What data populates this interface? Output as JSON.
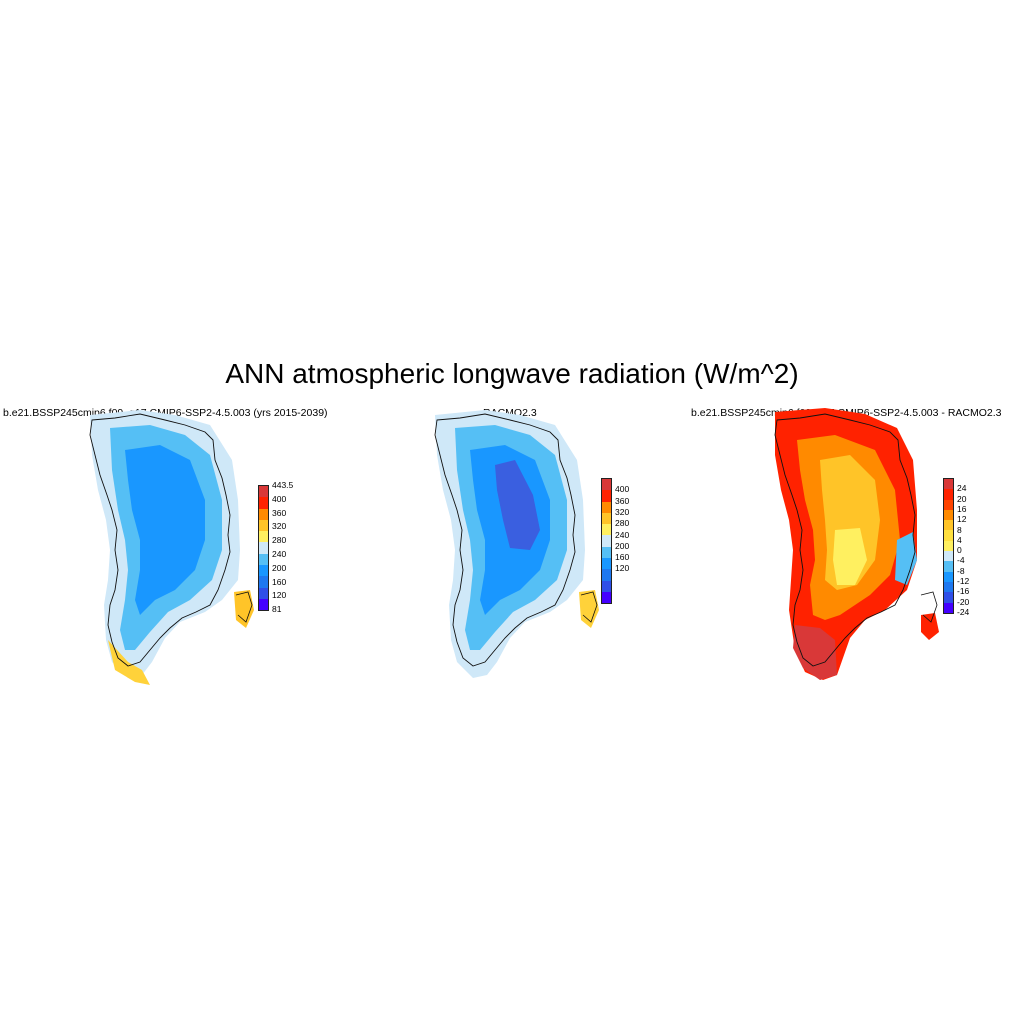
{
  "title": "ANN atmospheric longwave radiation (W/m^2)",
  "panels": [
    {
      "title": "b.e21.BSSP245cmip6.f09_g17.CMIP6-SSP2-4.5.003 (yrs 2015-2039)",
      "kind": "model",
      "colorbar": {
        "colors": [
          "#4400ff",
          "#2f4fe8",
          "#1e78f0",
          "#1997ff",
          "#55bff5",
          "#cfe8f8",
          "#fff060",
          "#ffc428",
          "#ff8a00",
          "#ff2200",
          "#d93838"
        ],
        "labels": [
          "443.5",
          "400",
          "360",
          "320",
          "280",
          "240",
          "200",
          "160",
          "120",
          "81"
        ]
      }
    },
    {
      "title": "RACMO2.3",
      "kind": "obs",
      "colorbar": {
        "colors": [
          "#4400ff",
          "#2f4fe8",
          "#1e78f0",
          "#1997ff",
          "#55bff5",
          "#cfe8f8",
          "#fff060",
          "#ffc428",
          "#ff8a00",
          "#ff2200",
          "#d93838"
        ],
        "labels": [
          "400",
          "360",
          "320",
          "280",
          "240",
          "200",
          "160",
          "120"
        ]
      }
    },
    {
      "title": "b.e21.BSSP245cmip6.f09_g17.CMIP6-SSP2-4.5.003 - RACMO2.3",
      "kind": "diff",
      "colorbar": {
        "colors": [
          "#4400ff",
          "#2f4fe8",
          "#1e78f0",
          "#1997ff",
          "#55bff5",
          "#cfe8f8",
          "#fff060",
          "#ffe040",
          "#ffc428",
          "#ff8a00",
          "#ff4400",
          "#ff2200",
          "#d93838"
        ],
        "labels": [
          "24",
          "20",
          "16",
          "12",
          "8",
          "4",
          "0",
          "-4",
          "-8",
          "-12",
          "-16",
          "-20",
          "-24"
        ]
      }
    }
  ]
}
